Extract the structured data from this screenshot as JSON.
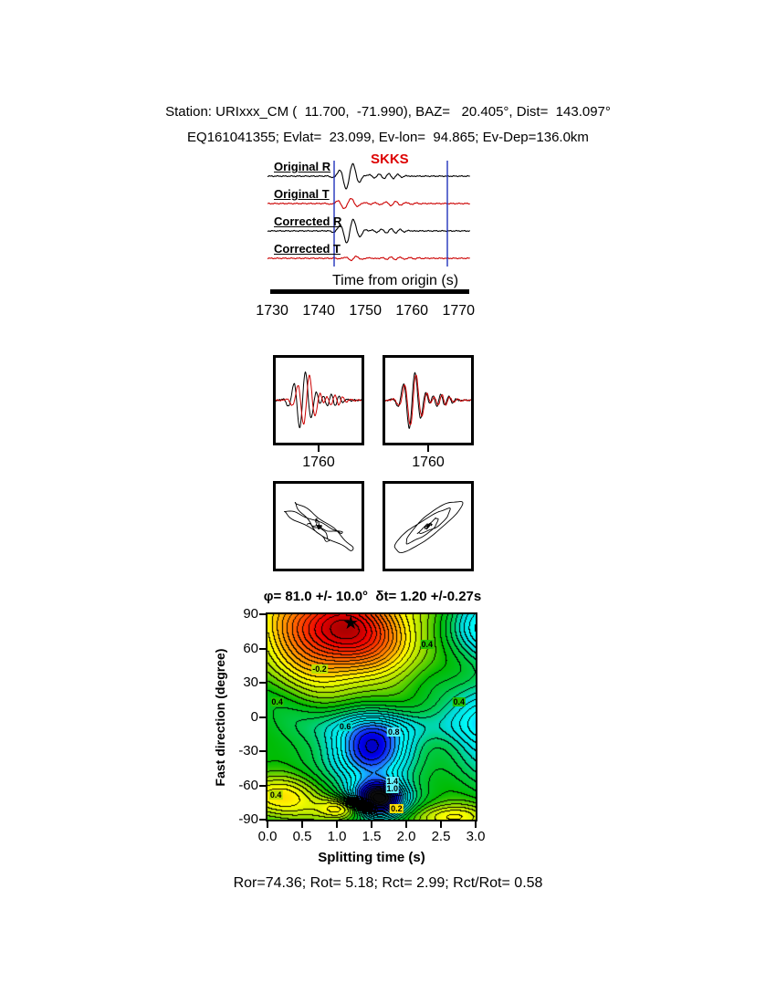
{
  "header": {
    "line1": "Station: URIxxx_CM (  11.700,  -71.990), BAZ=   20.405°, Dist=  143.097°",
    "line2": "EQ161041355; Evlat=  23.099, Ev-lon=  94.865; Ev-Dep=136.0km"
  },
  "results": {
    "line": "Ror=74.36; Rot= 5.18; Rct= 2.99; Rct/Rot= 0.58"
  },
  "chart_data": [
    {
      "id": "seismograms",
      "type": "line",
      "x_label": "Time from origin (s)",
      "x_ticks": [
        1730,
        1740,
        1750,
        1760,
        1770
      ],
      "x_range": [
        1729,
        1772.5
      ],
      "phase_label": "SKKS",
      "phase_color": "#dd0000",
      "pick_times": [
        1743.3,
        1767.6
      ],
      "pick_color": "#2233bb",
      "traces": [
        {
          "label": "Original R",
          "color": "#000000",
          "pulses": [
            {
              "t": 1746.6,
              "a": 15,
              "f": 0.33,
              "w": 2.4
            },
            {
              "t": 1754.5,
              "a": 3,
              "f": 0.5,
              "w": 3.5
            }
          ],
          "noise": 0.9,
          "seed": 1
        },
        {
          "label": "Original T",
          "color": "#cc0000",
          "pulses": [
            {
              "t": 1746.2,
              "a": 6,
              "f": 0.33,
              "w": 2.6
            },
            {
              "t": 1756,
              "a": 2.2,
              "f": 0.45,
              "w": 4
            }
          ],
          "noise": 0.9,
          "seed": 2
        },
        {
          "label": "Corrected R",
          "color": "#000000",
          "pulses": [
            {
              "t": 1746.7,
              "a": 14,
              "f": 0.33,
              "w": 2.4
            },
            {
              "t": 1755,
              "a": 2.5,
              "f": 0.5,
              "w": 3.5
            }
          ],
          "noise": 0.9,
          "seed": 3
        },
        {
          "label": "Corrected T",
          "color": "#cc0000",
          "pulses": [
            {
              "t": 1747.5,
              "a": 2.2,
              "f": 0.4,
              "w": 2.5
            },
            {
              "t": 1757,
              "a": 1.4,
              "f": 0.5,
              "w": 4
            }
          ],
          "noise": 0.9,
          "seed": 4
        }
      ]
    },
    {
      "id": "waveform_zoom",
      "type": "line",
      "tick_label": "1760",
      "tick_time": 1760,
      "x_range": [
        1748,
        1772
      ],
      "panels": [
        {
          "curves": [
            {
              "color": "#000000",
              "pulses": [
                {
                  "t": 1755.5,
                  "a": 34,
                  "f": 0.3,
                  "w": 3.2
                },
                {
                  "t": 1763,
                  "a": 7,
                  "f": 0.45,
                  "w": 4
                }
              ],
              "noise": 1.2,
              "seed": 5
            },
            {
              "color": "#cc0000",
              "pulses": [
                {
                  "t": 1756.6,
                  "a": 30,
                  "f": 0.3,
                  "w": 3.2
                },
                {
                  "t": 1764,
                  "a": 6,
                  "f": 0.45,
                  "w": 4
                }
              ],
              "noise": 1.2,
              "seed": 6
            }
          ]
        },
        {
          "curves": [
            {
              "color": "#000000",
              "pulses": [
                {
                  "t": 1755.5,
                  "a": 34,
                  "f": 0.3,
                  "w": 3.2
                },
                {
                  "t": 1763,
                  "a": 7,
                  "f": 0.45,
                  "w": 4
                }
              ],
              "noise": 1.2,
              "seed": 7
            },
            {
              "color": "#cc0000",
              "pulses": [
                {
                  "t": 1755.8,
                  "a": 31,
                  "f": 0.3,
                  "w": 3.2
                },
                {
                  "t": 1763.3,
                  "a": 6,
                  "f": 0.45,
                  "w": 4
                }
              ],
              "noise": 1.2,
              "seed": 8
            }
          ]
        }
      ]
    },
    {
      "id": "particle_motion",
      "type": "line",
      "panels": [
        {
          "u": {
            "pulses": [
              {
                "t": 1757,
                "a": 40,
                "f": 0.26,
                "w": 4.2
              }
            ],
            "noise": 2.2,
            "seed": 9
          },
          "v": {
            "pulses": [
              {
                "t": 1758.7,
                "a": 30,
                "f": 0.26,
                "w": 4.2
              }
            ],
            "noise": 2.2,
            "seed": 10
          }
        },
        {
          "u": {
            "pulses": [
              {
                "t": 1757,
                "a": 40,
                "f": 0.26,
                "w": 4.2
              }
            ],
            "noise": 2.2,
            "seed": 11
          },
          "v": {
            "pulses": [
              {
                "t": 1757.3,
                "a": 34,
                "f": 0.26,
                "w": 4.2
              }
            ],
            "noise": 2.6,
            "seed": 12
          }
        }
      ]
    },
    {
      "id": "misfit_contour",
      "type": "heatmap",
      "title": "φ= 81.0 +/- 10.0°  δt= 1.20 +/-0.27s",
      "phi_deg": 81.0,
      "phi_err_deg": 10.0,
      "dt_s": 1.2,
      "dt_err_s": 0.27,
      "x_label": "Splitting time (s)",
      "y_label": "Fast direction (degree)",
      "x_range": [
        0,
        3
      ],
      "y_range": [
        -90,
        90
      ],
      "x_ticks": [
        0,
        0.5,
        1,
        1.5,
        2,
        2.5,
        3
      ],
      "x_tick_labels": [
        "0.0",
        "0.5",
        "1.0",
        "1.5",
        "2.0",
        "2.5",
        "3.0"
      ],
      "y_ticks": [
        90,
        60,
        30,
        0,
        -30,
        -60,
        -90
      ],
      "best_solution": {
        "dt": 1.2,
        "phi": 81,
        "marker": "★"
      },
      "contour_interval": 0.05,
      "base_level": 0.43,
      "texture": [
        0.022,
        0.018
      ],
      "blobs": [
        {
          "cx": 1.05,
          "cy": 76,
          "sx": 1.0,
          "sy": 42,
          "amp": -0.85
        },
        {
          "cx": 1.45,
          "cy": -32,
          "sx": 0.55,
          "sy": 26,
          "amp": 0.55
        },
        {
          "cx": 1.6,
          "cy": -72,
          "sx": 0.38,
          "sy": 16,
          "amp": 0.85
        },
        {
          "cx": 3.15,
          "cy": 80,
          "sx": 0.55,
          "sy": 28,
          "amp": 0.35
        },
        {
          "cx": 3.2,
          "cy": -5,
          "sx": 0.5,
          "sy": 40,
          "amp": 0.33
        },
        {
          "cx": 1.8,
          "cy": -8,
          "sx": 1.2,
          "sy": 16,
          "amp": 0.2
        },
        {
          "cx": 0.15,
          "cy": -70,
          "sx": 0.7,
          "sy": 20,
          "amp": -0.3
        },
        {
          "cx": 1.1,
          "cy": -80,
          "sx": 0.35,
          "sy": 10,
          "amp": -0.35
        },
        {
          "cx": 2.6,
          "cy": -88,
          "sx": 0.6,
          "sy": 12,
          "amp": -0.3
        }
      ],
      "colormap": [
        [
          -0.5,
          "#880000"
        ],
        [
          -0.33,
          "#ee0000"
        ],
        [
          -0.15,
          "#ff5500"
        ],
        [
          0.02,
          "#ffaa00"
        ],
        [
          0.15,
          "#ffff00"
        ],
        [
          0.28,
          "#99dd00"
        ],
        [
          0.4,
          "#00bb00"
        ],
        [
          0.52,
          "#00cc55"
        ],
        [
          0.63,
          "#00dcdc"
        ],
        [
          0.76,
          "#00ffff"
        ],
        [
          0.87,
          "#2277ff"
        ],
        [
          0.97,
          "#0000ee"
        ],
        [
          1.08,
          "#000088"
        ],
        [
          1.2,
          "#101010"
        ],
        [
          1.45,
          "#000000"
        ]
      ],
      "contour_labels": [
        {
          "text": "-0.2",
          "x": 0.75,
          "y": 42,
          "bg": "#b8e000"
        },
        {
          "text": "0.4",
          "x": 0.14,
          "y": 13,
          "bg": "#22c000"
        },
        {
          "text": "0.4",
          "x": 2.76,
          "y": 13,
          "bg": "#22c000"
        },
        {
          "text": "0.4",
          "x": 2.3,
          "y": 64,
          "bg": "#22c000"
        },
        {
          "text": "0.6",
          "x": 1.12,
          "y": -8,
          "bg": "#00d8c8"
        },
        {
          "text": "0.8",
          "x": 1.82,
          "y": -13,
          "bg": "#55eaff"
        },
        {
          "text": "0.4",
          "x": 0.12,
          "y": -68,
          "bg": "#b8e000"
        },
        {
          "text": "1.4",
          "x": 1.8,
          "y": -56,
          "bg": "#66f0ff"
        },
        {
          "text": "1.0",
          "x": 1.8,
          "y": -63,
          "bg": "#66f0ff"
        },
        {
          "text": "0.2",
          "x": 1.86,
          "y": -80,
          "bg": "#ffe000"
        }
      ]
    }
  ]
}
